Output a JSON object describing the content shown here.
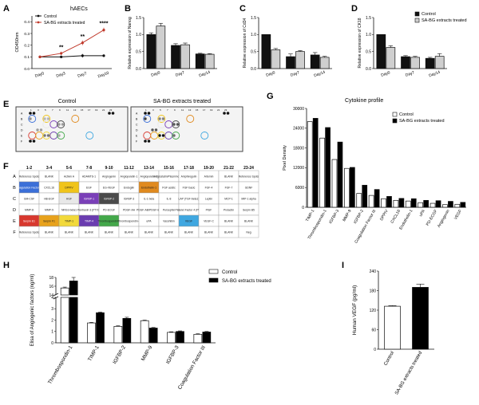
{
  "panels": {
    "A": {
      "letter": "A",
      "title": "hAECs"
    },
    "B": {
      "letter": "B"
    },
    "C": {
      "letter": "C"
    },
    "D": {
      "letter": "D"
    },
    "E": {
      "letter": "E",
      "control_title": "Control",
      "treated_title": "SA-BG extracts treated"
    },
    "F": {
      "letter": "F"
    },
    "G": {
      "letter": "G",
      "title": "Cytokine profile"
    },
    "H": {
      "letter": "H"
    },
    "I": {
      "letter": "I"
    }
  },
  "array_map": {
    "column_headers": [
      "1-2",
      "3-4",
      "5-6",
      "7-8",
      "9-10",
      "11-12",
      "13-14",
      "15-16",
      "17-18",
      "19-20",
      "21-22",
      "23-24"
    ],
    "rows": [
      {
        "label": "A",
        "cells": [
          "Reference Spots",
          "BLANK",
          "Activin A",
          "ADAMTS-1",
          "Angiogenin",
          "Angiopoietin-1",
          "Angiopoietin-2",
          "Angiostatin/Plasminogen",
          "Amphiregulin",
          "Artemin",
          "BLANK",
          "Reference Spots"
        ]
      },
      {
        "label": "B",
        "cells": [
          "Coagulation Factor III",
          "CXCL16",
          "DPPIV",
          "EGF",
          "EG-VEGF",
          "Endoglin",
          "Endothelin-1",
          "FGF acidic",
          "FGF basic",
          "FGF-4",
          "FGF-7",
          "GDNF"
        ]
      },
      {
        "label": "C",
        "cells": [
          "GM-CSF",
          "HB-EGF",
          "HGF",
          "IGFBP-1",
          "IGFBP-2",
          "IGFBP-3",
          "IL-1 beta",
          "IL-8",
          "LAP (TGF-beta1)",
          "Leptin",
          "MCP-1",
          "MIP-1 alpha"
        ]
      },
      {
        "label": "D",
        "cells": [
          "MMP-8",
          "MMP-9",
          "NRG1-beta1",
          "Pentraxin 3 (PTX3)",
          "PD-ECGF",
          "PDGF-AA",
          "PDGF-AB/PDGF-BB",
          "Persephin",
          "Platelet Factor 4 (PF4)",
          "PlGF",
          "Prolactin",
          "Serpin B5"
        ]
      },
      {
        "label": "E",
        "cells": [
          "Serpin E1",
          "Serpin F1",
          "TIMP-1",
          "TIMP-4",
          "Thrombospondin-1",
          "Thrombospondin-2",
          "uPA",
          "Vasohibin",
          "VEGF",
          "VEGF-C",
          "BLANK",
          "BLANK"
        ]
      },
      {
        "label": "F",
        "cells": [
          "Reference Spots",
          "BLANK",
          "BLANK",
          "BLANK",
          "BLANK",
          "BLANK",
          "BLANK",
          "BLANK",
          "BLANK",
          "BLANK",
          "BLANK",
          "Neg"
        ]
      }
    ],
    "highlights": [
      {
        "row": 1,
        "col": 0,
        "color": "#3b6fd8"
      },
      {
        "row": 1,
        "col": 2,
        "color": "#f0c419"
      },
      {
        "row": 1,
        "col": 6,
        "color": "#e08a1e"
      },
      {
        "row": 2,
        "col": 2,
        "color": "#e8e8e8"
      },
      {
        "row": 2,
        "col": 3,
        "color": "#7a3fb8"
      },
      {
        "row": 2,
        "col": 4,
        "color": "#4a4a4a"
      },
      {
        "row": 4,
        "col": 0,
        "color": "#d8382e"
      },
      {
        "row": 4,
        "col": 1,
        "color": "#e8a21c"
      },
      {
        "row": 4,
        "col": 2,
        "color": "#f2d93a"
      },
      {
        "row": 4,
        "col": 3,
        "color": "#6a3cb0"
      },
      {
        "row": 4,
        "col": 4,
        "color": "#43a84a"
      },
      {
        "row": 4,
        "col": 8,
        "color": "#3fa7e0"
      }
    ]
  },
  "chart_data": [
    {
      "panel": "A",
      "type": "line",
      "title": "hAECs",
      "categories": [
        "Day0",
        "Day3",
        "Day7",
        "Day10"
      ],
      "ylabel": "OD450nm",
      "ylim": [
        0,
        0.45
      ],
      "yticks": [
        "0.0",
        "0.1",
        "0.2",
        "0.3",
        "0.4"
      ],
      "series": [
        {
          "name": "Control",
          "values": [
            0.1,
            0.1,
            0.11,
            0.11
          ],
          "errors": [
            0.01,
            0.01,
            0.015,
            0.01
          ],
          "color": "#111111"
        },
        {
          "name": "SA-BG extracts treated",
          "values": [
            0.1,
            0.13,
            0.22,
            0.33
          ],
          "errors": [
            0.01,
            0.015,
            0.02,
            0.02
          ],
          "color": "#c0392b"
        }
      ],
      "significance": [
        "",
        "**",
        "**",
        "****"
      ]
    },
    {
      "panel": "B",
      "type": "bar",
      "categories": [
        "Day0",
        "Day7",
        "Day14"
      ],
      "ylabel": "Relative expression of Nanog",
      "ylim": [
        0,
        1.5
      ],
      "yticks": [
        "0.0",
        "0.5",
        "1.0",
        "1.5"
      ],
      "series": [
        {
          "values": [
            1.0,
            0.68,
            0.43
          ],
          "errors": [
            0.05,
            0.05,
            0.02
          ]
        },
        {
          "values": [
            1.25,
            0.7,
            0.42
          ],
          "errors": [
            0.08,
            0.05,
            0.02
          ]
        }
      ]
    },
    {
      "panel": "C",
      "type": "bar",
      "categories": [
        "Day0",
        "Day7",
        "Day14"
      ],
      "ylabel": "Relative expression of Cd34",
      "ylim": [
        0,
        1.5
      ],
      "yticks": [
        "0.0",
        "0.5",
        "1.0",
        "1.5"
      ],
      "series": [
        {
          "values": [
            1.0,
            0.35,
            0.4
          ],
          "errors": [
            0.0,
            0.08,
            0.07
          ]
        },
        {
          "values": [
            0.55,
            0.5,
            0.33
          ],
          "errors": [
            0.04,
            0.03,
            0.03
          ]
        }
      ]
    },
    {
      "panel": "D",
      "type": "bar",
      "categories": [
        "Day0",
        "Day7",
        "Day14"
      ],
      "ylabel": "Relative expression of CK18",
      "ylim": [
        0,
        1.5
      ],
      "yticks": [
        "0.0",
        "0.5",
        "1.0",
        "1.5"
      ],
      "series": [
        {
          "name": "Control",
          "values": [
            1.0,
            0.35,
            0.3
          ],
          "errors": [
            0.0,
            0.03,
            0.03
          ],
          "color": "#111111"
        },
        {
          "name": "SA-BG extracts treated",
          "values": [
            0.62,
            0.33,
            0.36
          ],
          "errors": [
            0.05,
            0.03,
            0.08
          ],
          "color": "#cfcfcf"
        }
      ]
    },
    {
      "panel": "G",
      "type": "bar",
      "title": "Cytokine profile",
      "categories": [
        "TIMP-1",
        "Thrombospondin-1",
        "IGFBP-3",
        "MMP-9",
        "IGFBP-2",
        "Coagulation Factor III",
        "DPPIV",
        "CXCL16",
        "Endothelin-1",
        "uPA",
        "PD-ECGF",
        "Angiogenin",
        "VEGF"
      ],
      "ylabel": "Pixel Density",
      "ylim": [
        0,
        30000
      ],
      "yticks": [
        "0",
        "6000",
        "12000",
        "18000",
        "24000",
        "30000"
      ],
      "series": [
        {
          "name": "Control",
          "values": [
            26000,
            21000,
            14500,
            11800,
            4200,
            3600,
            2600,
            2100,
            1900,
            1400,
            1200,
            800,
            900
          ],
          "color": "#ffffff"
        },
        {
          "name": "SA-BG extracts treated",
          "values": [
            27000,
            24200,
            19800,
            12100,
            6700,
            5400,
            3300,
            2700,
            2600,
            2100,
            2000,
            1800,
            1500
          ],
          "color": "#000000"
        }
      ]
    },
    {
      "panel": "H",
      "type": "bar",
      "categories": [
        "Thrombospondin-1",
        "TIMP-1",
        "IGFBP-2",
        "MMP-9",
        "IGFBP-3",
        "Coagulation Factor III"
      ],
      "ylabel": "Elisa of Angiogenic factors (ng/ml)",
      "axis_break": {
        "lower_range": [
          0,
          4
        ],
        "upper_range": [
          14,
          18
        ]
      },
      "yticks_lower": [
        "0",
        "1",
        "2",
        "3",
        "4"
      ],
      "yticks_upper": [
        "14",
        "16",
        "18"
      ],
      "series": [
        {
          "name": "Control",
          "values": [
            15.6,
            1.75,
            1.45,
            1.95,
            0.92,
            0.75
          ],
          "errors": [
            0.2,
            0.05,
            0.05,
            0.05,
            0.05,
            0.05
          ],
          "color": "#ffffff"
        },
        {
          "name": "SA-BG extracts treated",
          "values": [
            17.2,
            2.65,
            2.15,
            1.3,
            1.0,
            0.95
          ],
          "errors": [
            0.8,
            0.05,
            0.1,
            0.05,
            0.05,
            0.05
          ],
          "color": "#000000"
        }
      ]
    },
    {
      "panel": "I",
      "type": "bar",
      "categories": [
        "Control",
        "SA-BG extracts treated"
      ],
      "ylabel": "Human VEGF (pg/ml)",
      "ylim": [
        0,
        240
      ],
      "yticks": [
        "0",
        "60",
        "120",
        "180",
        "240"
      ],
      "values": [
        132,
        190
      ],
      "errors": [
        2,
        10
      ],
      "colors": [
        "#ffffff",
        "#000000"
      ]
    }
  ]
}
